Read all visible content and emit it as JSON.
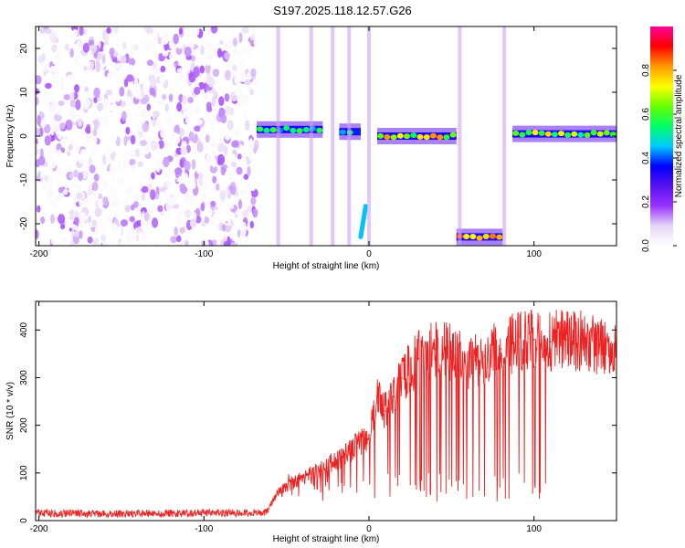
{
  "title": "S197.2025.118.12.57.G26",
  "chart_data": [
    {
      "type": "heatmap",
      "title": "S197.2025.118.12.57.G26",
      "xlabel": "Height of straight line (km)",
      "ylabel": "Frequency (Hz)",
      "xlim": [
        -202,
        150
      ],
      "ylim": [
        -25,
        25
      ],
      "xticks": [
        -200,
        -100,
        0,
        100
      ],
      "yticks": [
        -20,
        -10,
        0,
        10,
        20
      ],
      "colorbar": {
        "label": "Normalized spectral amplitude",
        "range": [
          0,
          1
        ],
        "ticks": [
          "0.0",
          "0.2",
          "0.4",
          "0.6",
          "0.8"
        ],
        "colors": [
          "#ffffff",
          "#e6d6f5",
          "#9933ff",
          "#5511ee",
          "#0000ff",
          "#00ccff",
          "#00ff66",
          "#66ff00",
          "#ffff00",
          "#ff9900",
          "#ff0000",
          "#ff0099"
        ]
      },
      "features": [
        {
          "x_range": [
            -202,
            -68
          ],
          "freq_range": [
            -25,
            25
          ],
          "kind": "broadband noise",
          "amplitude": 0.12
        },
        {
          "x_range": [
            -68,
            -28
          ],
          "freq": 1.5,
          "kind": "narrow band",
          "amplitude": 0.55
        },
        {
          "x_range": [
            -18,
            -5
          ],
          "freq": 1,
          "kind": "narrow band",
          "amplitude": 0.5
        },
        {
          "x_range": [
            -5,
            -2
          ],
          "freq_range": [
            -23,
            -16
          ],
          "kind": "chirp",
          "amplitude": 0.45
        },
        {
          "x_range": [
            5,
            53
          ],
          "freq": 0,
          "kind": "narrow band",
          "amplitude": 0.75
        },
        {
          "x_range": [
            53,
            81
          ],
          "freq": -23,
          "kind": "narrow band",
          "amplitude": 0.8
        },
        {
          "x_range": [
            87,
            150
          ],
          "freq": 0.5,
          "kind": "narrow band",
          "amplitude": 0.7
        }
      ]
    },
    {
      "type": "line",
      "xlabel": "Height of straight line (km)",
      "ylabel": "SNR (10 * v/v)",
      "xlim": [
        -202,
        150
      ],
      "ylim": [
        0,
        460
      ],
      "xticks": [
        -200,
        -100,
        0,
        100
      ],
      "yticks": [
        0,
        100,
        200,
        300,
        400
      ],
      "color": "#ee2222",
      "series": [
        {
          "x": [
            -202,
            -180,
            -160,
            -140,
            -120,
            -100,
            -80,
            -62,
            -55,
            -50,
            -40,
            -30,
            -20,
            -10,
            0,
            5,
            10,
            15,
            20,
            30,
            35,
            40,
            50,
            60,
            70,
            80,
            90,
            100,
            110,
            120,
            130,
            140,
            150
          ],
          "values": [
            15,
            15,
            14,
            15,
            15,
            16,
            16,
            18,
            60,
            70,
            90,
            105,
            125,
            150,
            180,
            260,
            230,
            260,
            300,
            340,
            350,
            360,
            355,
            330,
            345,
            360,
            375,
            380,
            375,
            380,
            375,
            370,
            360
          ]
        }
      ]
    }
  ]
}
